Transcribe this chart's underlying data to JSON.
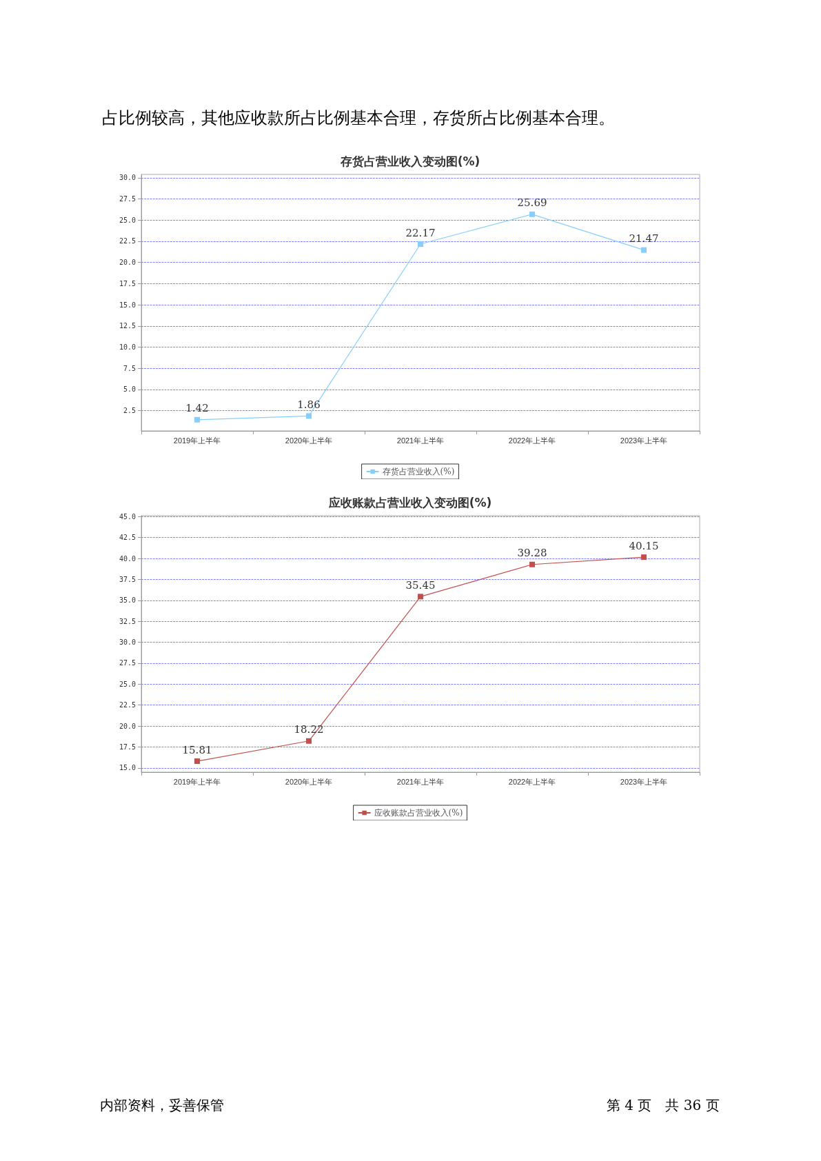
{
  "chart_data": [
    {
      "type": "line",
      "title": "存货占营业收入变动图(%)",
      "categories": [
        "2019年上半年",
        "2020年上半年",
        "2021年上半年",
        "2022年上半年",
        "2023年上半年"
      ],
      "series": [
        {
          "name": "存货占营业收入(%)",
          "color": "#87cefa",
          "values": [
            1.42,
            1.86,
            22.17,
            25.69,
            21.47
          ]
        }
      ],
      "ylim": [
        0.1,
        30.4
      ],
      "yticks": [
        2.5,
        {
          "value": 5,
          "label": "5.0"
        },
        7.5,
        {
          "value": 10,
          "label": "10.0"
        },
        12.5,
        {
          "value": 15,
          "label": "15.0"
        },
        17.5,
        {
          "value": 20,
          "label": "20.0"
        },
        22.5,
        {
          "value": 25,
          "label": "25.0"
        },
        27.5,
        {
          "value": 30,
          "label": "30.0"
        }
      ],
      "grid": "y",
      "legend": "bottom",
      "marker": "square",
      "line_style": "solid",
      "data_labels": true,
      "annotations": [
        "占比例较高，其他应收款所占比例基本合理，存货所占比例基本合理。"
      ]
    },
    {
      "type": "line",
      "title": "应收账款占营业收入变动图(%)",
      "categories": [
        "2019年上半年",
        "2020年上半年",
        "2021年上半年",
        "2022年上半年",
        "2023年上半年"
      ],
      "series": [
        {
          "name": "应收账款占营业收入(%)",
          "color": "#c0504d",
          "values": [
            15.81,
            18.22,
            35.45,
            39.28,
            40.15
          ]
        }
      ],
      "ylim": [
        14.5,
        45.1
      ],
      "yticks": [
        {
          "value": 15,
          "label": "15.0"
        },
        17.5,
        {
          "value": 20,
          "label": "20.0"
        },
        22.5,
        {
          "value": 25,
          "label": "25.0"
        },
        27.5,
        {
          "value": 30,
          "label": "30.0"
        },
        32.5,
        {
          "value": 35,
          "label": "35.0"
        },
        37.5,
        {
          "value": 40,
          "label": "40.0"
        },
        42.5,
        {
          "value": 45,
          "label": "45.0"
        }
      ],
      "grid": "y",
      "legend": "bottom",
      "marker": "square",
      "line_style": "solid",
      "data_labels": true,
      "annotations": [
        "内部资料，妥善保管",
        "第 4 页　共 36 页"
      ]
    }
  ]
}
